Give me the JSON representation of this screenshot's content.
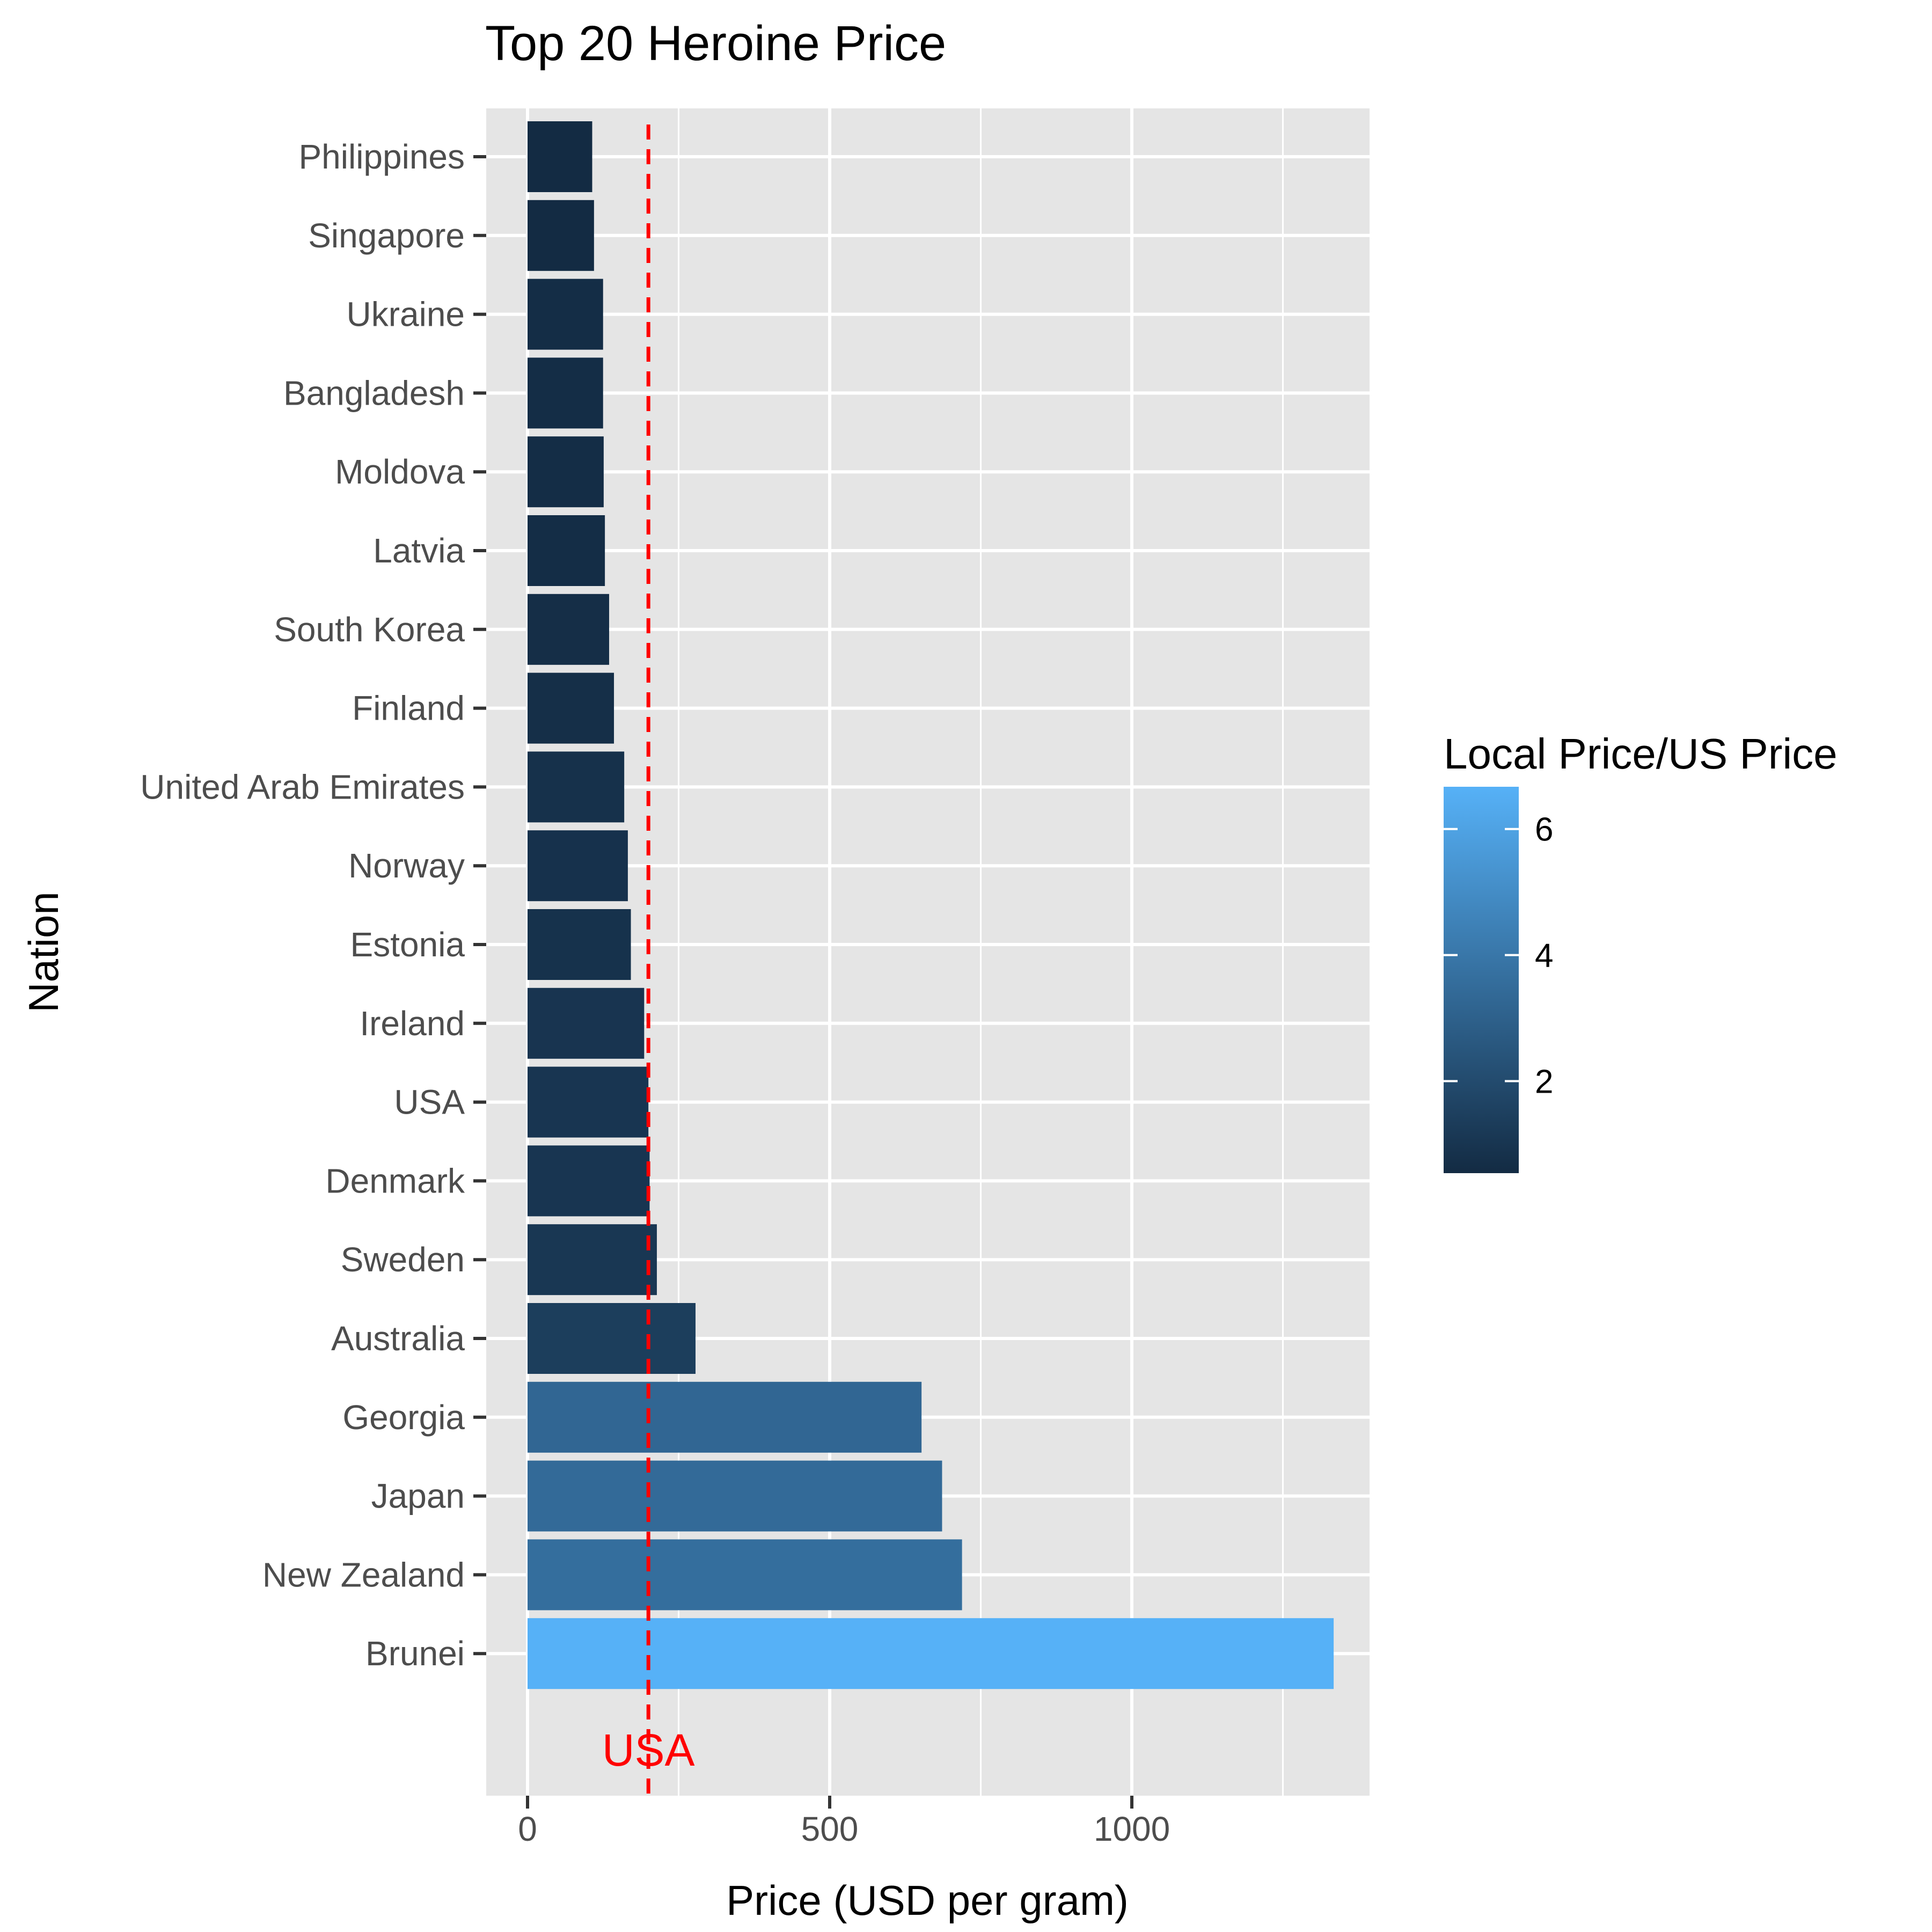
{
  "chart_data": {
    "type": "bar",
    "orientation": "horizontal",
    "title": "Top 20 Heroine Price",
    "xlabel": "Price (USD per gram)",
    "ylabel": "Nation",
    "xlim": [
      -70,
      1400
    ],
    "xticks": [
      0,
      500,
      1000
    ],
    "grid": true,
    "categories": [
      "Philippines",
      "Singapore",
      "Ukraine",
      "Bangladesh",
      "Moldova",
      "Latvia",
      "South Korea",
      "Finland",
      "United Arab Emirates",
      "Norway",
      "Estonia",
      "Ireland",
      "USA",
      "Denmark",
      "Sweden",
      "Australia",
      "Georgia",
      "Japan",
      "New Zealand",
      "Brunei"
    ],
    "values": [
      107,
      110,
      125,
      125,
      126,
      128,
      135,
      143,
      160,
      166,
      171,
      193,
      200,
      202,
      214,
      278,
      652,
      686,
      719,
      1334
    ],
    "color_values": [
      0.54,
      0.55,
      0.63,
      0.63,
      0.63,
      0.64,
      0.68,
      0.72,
      0.8,
      0.83,
      0.86,
      0.97,
      1.0,
      1.01,
      1.07,
      1.39,
      3.26,
      3.43,
      3.6,
      6.67
    ],
    "reference_line": {
      "value": 200,
      "label": "USA",
      "color": "#ff0000",
      "style": "dashed"
    },
    "legend": {
      "title": "Local Price/US Price",
      "position": "right",
      "range": [
        0.54,
        6.67
      ],
      "ticks": [
        2,
        4,
        6
      ],
      "color_low": "#132b43",
      "color_high": "#56b1f7"
    },
    "colors": {
      "panel_background": "#e5e5e5",
      "grid": "#ffffff",
      "axis_text": "#4d4d4d"
    }
  }
}
